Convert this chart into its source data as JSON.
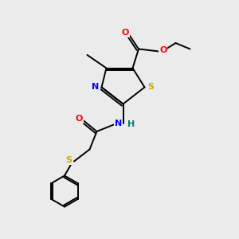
{
  "background_color": "#ebebeb",
  "bond_color": "#000000",
  "figsize": [
    3.0,
    3.0
  ],
  "dpi": 100,
  "atom_colors": {
    "O": "#ff0000",
    "N": "#0000ff",
    "S_thiazole": "#ccaa00",
    "S_sulfanyl": "#ccaa00",
    "H": "#008080",
    "C": "#000000"
  },
  "lw": 1.4
}
